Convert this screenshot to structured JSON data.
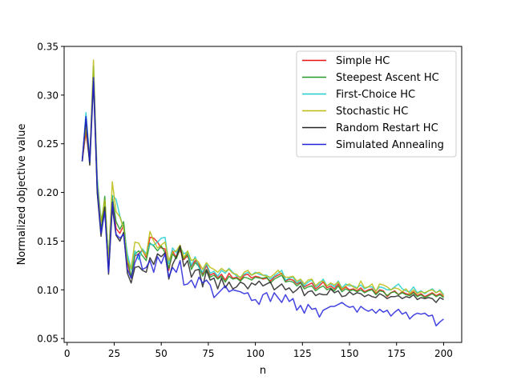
{
  "chart_data": {
    "type": "line",
    "title": "",
    "xlabel": "n",
    "ylabel": "Normalized objective value",
    "xlim": [
      -1.6,
      209.6
    ],
    "ylim": [
      0.046,
      0.35
    ],
    "xticks": [
      0,
      25,
      50,
      75,
      100,
      125,
      150,
      175,
      200
    ],
    "yticks": [
      0.05,
      0.1,
      0.15,
      0.2,
      0.25,
      0.3,
      0.35
    ],
    "ytick_labels": [
      "0.05",
      "0.10",
      "0.15",
      "0.20",
      "0.25",
      "0.30",
      "0.35"
    ],
    "grid": false,
    "legend_position": "top-right",
    "x": [
      8,
      10,
      12,
      14,
      16,
      18,
      20,
      22,
      24,
      26,
      28,
      30,
      32,
      34,
      36,
      38,
      40,
      42,
      44,
      46,
      48,
      50,
      52,
      54,
      56,
      58,
      60,
      62,
      64,
      66,
      68,
      70,
      72,
      74,
      76,
      78,
      80,
      82,
      84,
      86,
      88,
      90,
      92,
      94,
      96,
      98,
      100,
      102,
      104,
      106,
      108,
      110,
      112,
      114,
      116,
      118,
      120,
      122,
      124,
      126,
      128,
      130,
      132,
      134,
      136,
      138,
      140,
      142,
      144,
      146,
      148,
      150,
      152,
      154,
      156,
      158,
      160,
      162,
      164,
      166,
      168,
      170,
      172,
      174,
      176,
      178,
      180,
      182,
      184,
      186,
      188,
      190,
      192,
      194,
      196,
      198,
      200
    ],
    "series": [
      {
        "name": "Simple HC",
        "color": "#ee1111",
        "values": [
          0.232,
          0.262,
          0.232,
          0.323,
          0.205,
          0.16,
          0.192,
          0.125,
          0.196,
          0.163,
          0.158,
          0.166,
          0.128,
          0.112,
          0.135,
          0.137,
          0.141,
          0.133,
          0.154,
          0.153,
          0.149,
          0.143,
          0.142,
          0.12,
          0.14,
          0.133,
          0.141,
          0.131,
          0.135,
          0.124,
          0.13,
          0.126,
          0.116,
          0.125,
          0.115,
          0.117,
          0.112,
          0.116,
          0.11,
          0.117,
          0.112,
          0.113,
          0.11,
          0.115,
          0.116,
          0.112,
          0.114,
          0.113,
          0.111,
          0.112,
          0.109,
          0.113,
          0.115,
          0.117,
          0.109,
          0.111,
          0.11,
          0.106,
          0.108,
          0.103,
          0.105,
          0.107,
          0.101,
          0.104,
          0.108,
          0.102,
          0.104,
          0.101,
          0.106,
          0.1,
          0.103,
          0.1,
          0.101,
          0.099,
          0.102,
          0.098,
          0.1,
          0.101,
          0.096,
          0.1,
          0.099,
          0.093,
          0.097,
          0.099,
          0.095,
          0.098,
          0.096,
          0.095,
          0.098,
          0.094,
          0.096,
          0.093,
          0.095,
          0.097,
          0.094,
          0.096,
          0.093
        ]
      },
      {
        "name": "Steepest Ascent HC",
        "color": "#229922",
        "values": [
          0.232,
          0.268,
          0.23,
          0.328,
          0.2,
          0.16,
          0.196,
          0.128,
          0.195,
          0.17,
          0.162,
          0.17,
          0.132,
          0.113,
          0.137,
          0.14,
          0.135,
          0.13,
          0.148,
          0.145,
          0.14,
          0.145,
          0.138,
          0.122,
          0.137,
          0.132,
          0.143,
          0.132,
          0.137,
          0.121,
          0.128,
          0.124,
          0.114,
          0.121,
          0.113,
          0.115,
          0.111,
          0.114,
          0.108,
          0.114,
          0.111,
          0.112,
          0.109,
          0.113,
          0.112,
          0.11,
          0.113,
          0.112,
          0.112,
          0.113,
          0.107,
          0.111,
          0.113,
          0.115,
          0.108,
          0.109,
          0.108,
          0.104,
          0.107,
          0.101,
          0.103,
          0.104,
          0.099,
          0.102,
          0.104,
          0.1,
          0.102,
          0.099,
          0.104,
          0.098,
          0.101,
          0.099,
          0.1,
          0.098,
          0.1,
          0.097,
          0.099,
          0.1,
          0.095,
          0.099,
          0.098,
          0.094,
          0.097,
          0.098,
          0.095,
          0.097,
          0.095,
          0.094,
          0.097,
          0.093,
          0.095,
          0.092,
          0.094,
          0.096,
          0.093,
          0.095,
          0.092
        ]
      },
      {
        "name": "First-Choice HC",
        "color": "#22cccc",
        "values": [
          0.232,
          0.282,
          0.234,
          0.33,
          0.215,
          0.172,
          0.188,
          0.135,
          0.197,
          0.193,
          0.176,
          0.163,
          0.137,
          0.121,
          0.14,
          0.131,
          0.142,
          0.137,
          0.147,
          0.146,
          0.149,
          0.153,
          0.154,
          0.127,
          0.143,
          0.138,
          0.144,
          0.137,
          0.139,
          0.125,
          0.134,
          0.123,
          0.118,
          0.127,
          0.117,
          0.119,
          0.114,
          0.12,
          0.117,
          0.122,
          0.118,
          0.114,
          0.113,
          0.116,
          0.118,
          0.115,
          0.118,
          0.116,
          0.115,
          0.115,
          0.111,
          0.114,
          0.117,
          0.12,
          0.11,
          0.112,
          0.113,
          0.107,
          0.11,
          0.104,
          0.108,
          0.11,
          0.103,
          0.106,
          0.111,
          0.104,
          0.106,
          0.103,
          0.109,
          0.102,
          0.106,
          0.104,
          0.104,
          0.102,
          0.105,
          0.101,
          0.103,
          0.103,
          0.099,
          0.103,
          0.102,
          0.1,
          0.1,
          0.103,
          0.106,
          0.101,
          0.099,
          0.098,
          0.103,
          0.097,
          0.099,
          0.096,
          0.099,
          0.101,
          0.097,
          0.1,
          0.095
        ]
      },
      {
        "name": "Stochastic HC",
        "color": "#bbbb11",
        "values": [
          0.232,
          0.27,
          0.235,
          0.336,
          0.21,
          0.17,
          0.192,
          0.13,
          0.211,
          0.18,
          0.175,
          0.163,
          0.13,
          0.122,
          0.149,
          0.148,
          0.14,
          0.135,
          0.16,
          0.15,
          0.143,
          0.146,
          0.149,
          0.13,
          0.139,
          0.14,
          0.146,
          0.133,
          0.14,
          0.13,
          0.132,
          0.128,
          0.121,
          0.128,
          0.123,
          0.121,
          0.118,
          0.122,
          0.119,
          0.121,
          0.117,
          0.116,
          0.112,
          0.118,
          0.12,
          0.115,
          0.117,
          0.118,
          0.115,
          0.114,
          0.113,
          0.116,
          0.12,
          0.116,
          0.113,
          0.113,
          0.114,
          0.109,
          0.111,
          0.106,
          0.11,
          0.111,
          0.104,
          0.108,
          0.109,
          0.104,
          0.107,
          0.105,
          0.108,
          0.101,
          0.104,
          0.106,
          0.103,
          0.101,
          0.109,
          0.102,
          0.103,
          0.106,
          0.098,
          0.106,
          0.105,
          0.103,
          0.1,
          0.102,
          0.101,
          0.098,
          0.101,
          0.096,
          0.1,
          0.096,
          0.098,
          0.097,
          0.099,
          0.1,
          0.097,
          0.099,
          0.094
        ]
      },
      {
        "name": "Random Restart HC",
        "color": "#222222",
        "values": [
          0.232,
          0.276,
          0.228,
          0.314,
          0.2,
          0.155,
          0.185,
          0.116,
          0.185,
          0.156,
          0.15,
          0.159,
          0.117,
          0.107,
          0.123,
          0.124,
          0.12,
          0.118,
          0.133,
          0.126,
          0.137,
          0.134,
          0.138,
          0.111,
          0.126,
          0.134,
          0.145,
          0.124,
          0.13,
          0.113,
          0.12,
          0.121,
          0.103,
          0.12,
          0.11,
          0.112,
          0.101,
          0.112,
          0.102,
          0.108,
          0.101,
          0.103,
          0.108,
          0.106,
          0.101,
          0.107,
          0.105,
          0.109,
          0.104,
          0.106,
          0.108,
          0.1,
          0.103,
          0.106,
          0.1,
          0.102,
          0.097,
          0.1,
          0.104,
          0.094,
          0.098,
          0.099,
          0.094,
          0.096,
          0.095,
          0.095,
          0.101,
          0.097,
          0.099,
          0.093,
          0.094,
          0.098,
          0.095,
          0.097,
          0.096,
          0.093,
          0.095,
          0.093,
          0.092,
          0.096,
          0.094,
          0.091,
          0.093,
          0.093,
          0.094,
          0.091,
          0.093,
          0.092,
          0.095,
          0.09,
          0.092,
          0.091,
          0.092,
          0.091,
          0.087,
          0.092,
          0.09
        ]
      },
      {
        "name": "Simulated Annealing",
        "color": "#2222dd",
        "values": [
          0.232,
          0.278,
          0.232,
          0.318,
          0.205,
          0.158,
          0.18,
          0.118,
          0.19,
          0.157,
          0.153,
          0.157,
          0.121,
          0.112,
          0.128,
          0.137,
          0.121,
          0.123,
          0.13,
          0.118,
          0.134,
          0.127,
          0.137,
          0.113,
          0.123,
          0.118,
          0.13,
          0.105,
          0.106,
          0.11,
          0.102,
          0.113,
          0.107,
          0.11,
          0.105,
          0.092,
          0.096,
          0.1,
          0.104,
          0.098,
          0.1,
          0.099,
          0.098,
          0.096,
          0.097,
          0.089,
          0.09,
          0.085,
          0.095,
          0.097,
          0.088,
          0.097,
          0.092,
          0.087,
          0.095,
          0.088,
          0.091,
          0.079,
          0.084,
          0.076,
          0.085,
          0.08,
          0.081,
          0.072,
          0.079,
          0.081,
          0.083,
          0.083,
          0.085,
          0.087,
          0.084,
          0.082,
          0.083,
          0.077,
          0.083,
          0.08,
          0.078,
          0.08,
          0.076,
          0.08,
          0.077,
          0.079,
          0.073,
          0.077,
          0.08,
          0.075,
          0.077,
          0.07,
          0.074,
          0.076,
          0.075,
          0.076,
          0.073,
          0.074,
          0.063,
          0.067,
          0.07
        ]
      }
    ]
  }
}
